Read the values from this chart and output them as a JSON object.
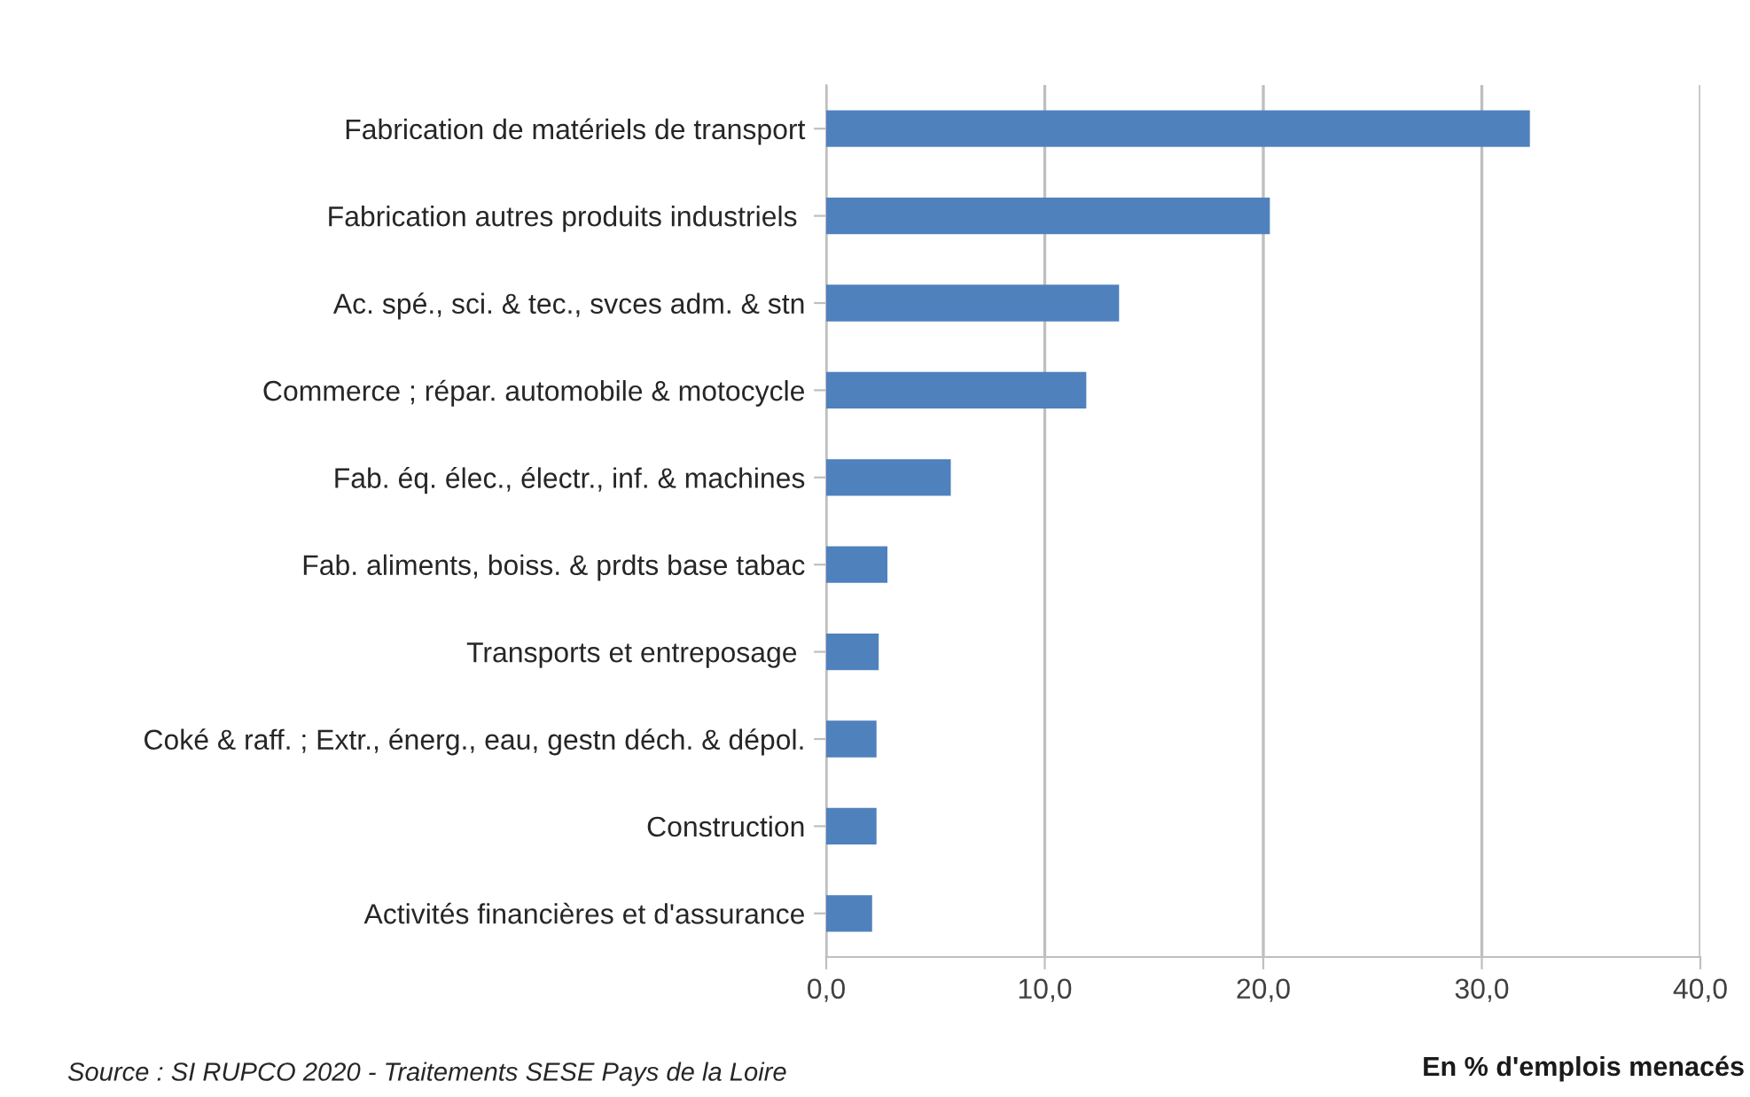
{
  "chart_data": {
    "type": "bar",
    "orientation": "horizontal",
    "categories": [
      "Fabrication de matériels de transport",
      "Fabrication autres produits industriels ",
      "Ac. spé., sci. & tec., svces adm. & stn",
      "Commerce ; répar. automobile & motocycle",
      "Fab. éq. élec., électr., inf. & machines",
      "Fab. aliments, boiss. & prdts base tabac",
      "Transports et entreposage ",
      "Coké & raff. ; Extr., énerg., eau, gestn déch. & dépol.",
      "Construction",
      "Activités financières et d'assurance"
    ],
    "values": [
      32.2,
      20.3,
      13.4,
      11.9,
      5.7,
      2.8,
      2.4,
      2.3,
      2.3,
      2.1
    ],
    "color": "#4f81bd",
    "xlim": [
      0,
      40
    ],
    "xticks": [
      {
        "value": 0,
        "label": "0,0"
      },
      {
        "value": 10,
        "label": "10,0"
      },
      {
        "value": 20,
        "label": "20,0"
      },
      {
        "value": 30,
        "label": "30,0"
      },
      {
        "value": 40,
        "label": "40,0"
      }
    ],
    "xlabel": "En % d'emplois menacés",
    "annotations": [
      "Source : SI RUPCO 2020 - Traitements SESE Pays de la Loire"
    ],
    "grid": "x"
  }
}
